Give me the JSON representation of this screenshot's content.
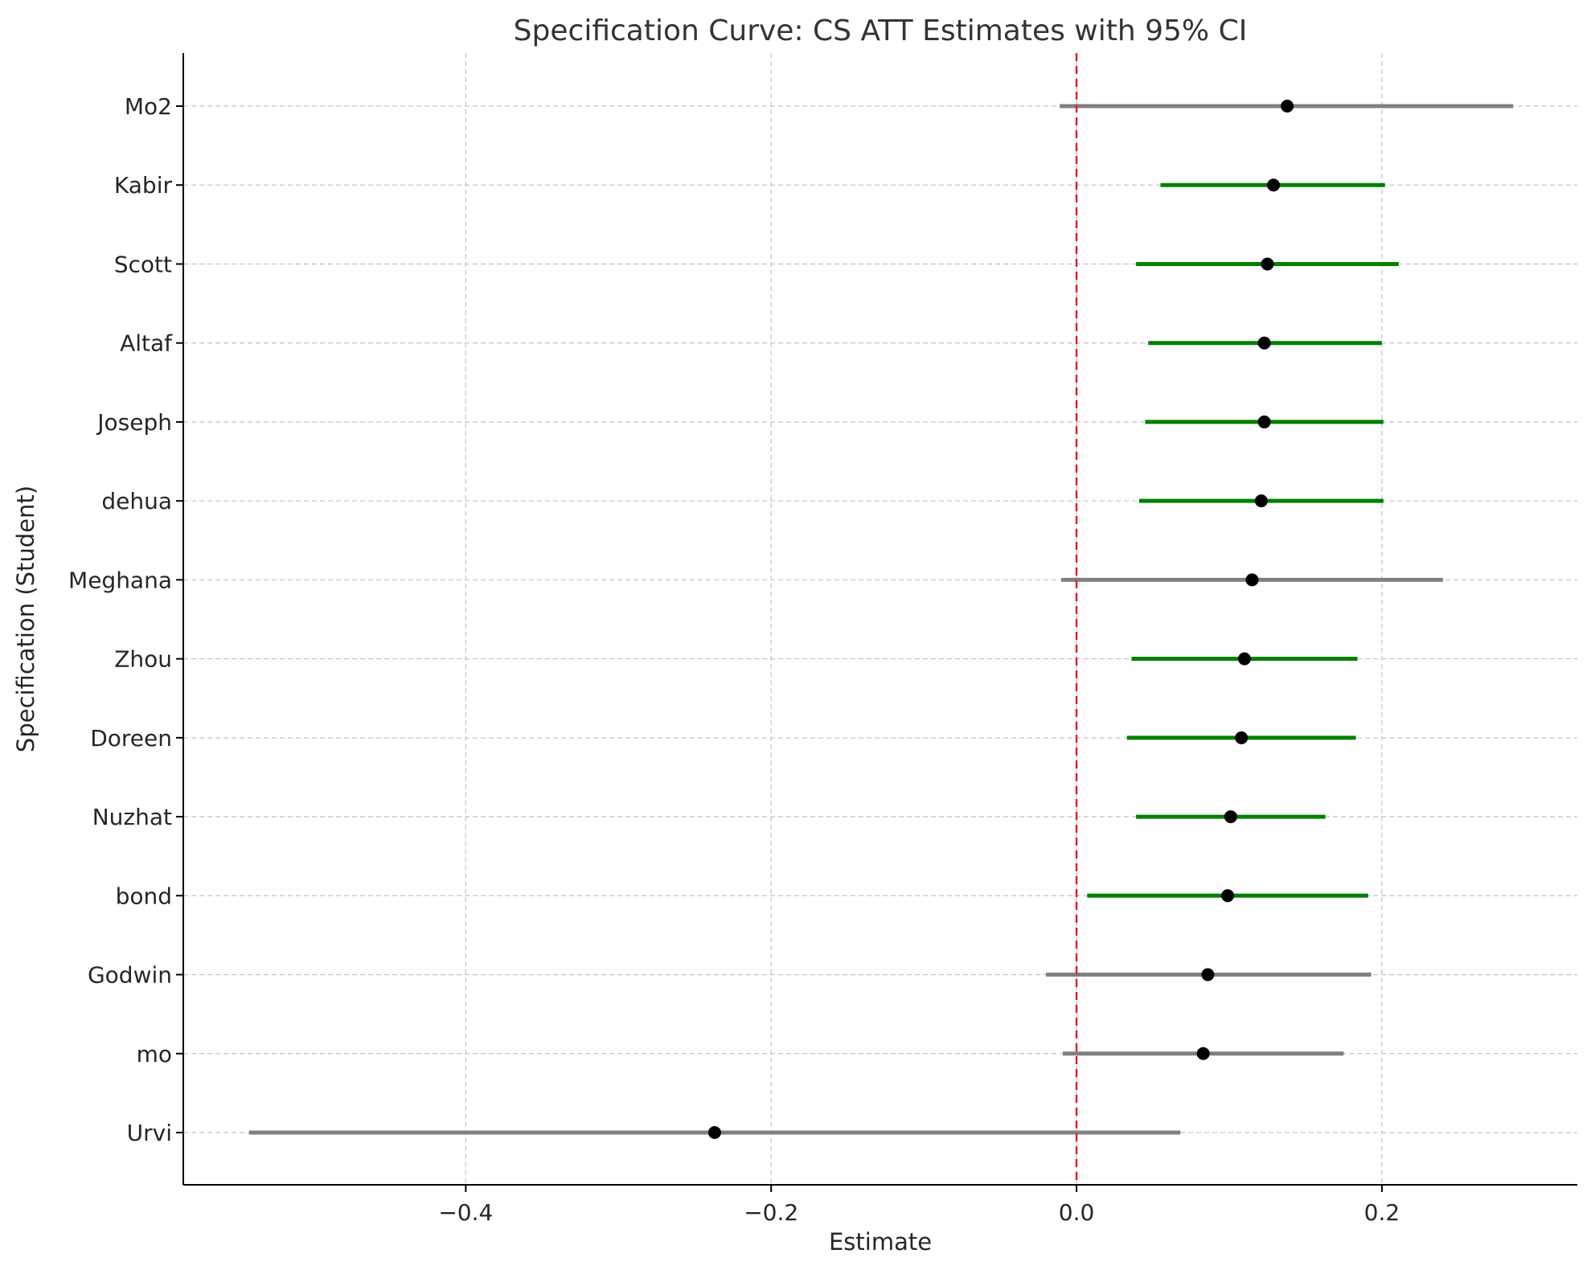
{
  "chart_data": {
    "type": "scatter",
    "title": "Specification Curve: CS ATT Estimates with 95% CI",
    "xlabel": "Estimate",
    "ylabel": "Specification (Student)",
    "xlim": [
      -0.585,
      0.328
    ],
    "x_ticks": [
      -0.4,
      -0.2,
      0.0,
      0.2
    ],
    "x_tick_labels": [
      "−0.4",
      "−0.2",
      "0.0",
      "0.2"
    ],
    "grid": true,
    "reference_line": {
      "x": 0.0,
      "color": "#e41a1c",
      "style": "dashed"
    },
    "colors": {
      "significant": "#008000",
      "not_significant": "#808080",
      "point": "#000000"
    },
    "points": [
      {
        "label": "Mo2",
        "estimate": 0.138,
        "ci_low": -0.011,
        "ci_high": 0.286,
        "significant": false
      },
      {
        "label": "Kabir",
        "estimate": 0.129,
        "ci_low": 0.055,
        "ci_high": 0.202,
        "significant": true
      },
      {
        "label": "Scott",
        "estimate": 0.125,
        "ci_low": 0.039,
        "ci_high": 0.211,
        "significant": true
      },
      {
        "label": "Altaf",
        "estimate": 0.123,
        "ci_low": 0.047,
        "ci_high": 0.2,
        "significant": true
      },
      {
        "label": "Joseph",
        "estimate": 0.123,
        "ci_low": 0.045,
        "ci_high": 0.201,
        "significant": true
      },
      {
        "label": "dehua",
        "estimate": 0.121,
        "ci_low": 0.041,
        "ci_high": 0.201,
        "significant": true
      },
      {
        "label": "Meghana",
        "estimate": 0.115,
        "ci_low": -0.01,
        "ci_high": 0.24,
        "significant": false
      },
      {
        "label": "Zhou",
        "estimate": 0.11,
        "ci_low": 0.036,
        "ci_high": 0.184,
        "significant": true
      },
      {
        "label": "Doreen",
        "estimate": 0.108,
        "ci_low": 0.033,
        "ci_high": 0.183,
        "significant": true
      },
      {
        "label": "Nuzhat",
        "estimate": 0.101,
        "ci_low": 0.039,
        "ci_high": 0.163,
        "significant": true
      },
      {
        "label": "bond",
        "estimate": 0.099,
        "ci_low": 0.007,
        "ci_high": 0.191,
        "significant": true
      },
      {
        "label": "Godwin",
        "estimate": 0.086,
        "ci_low": -0.02,
        "ci_high": 0.193,
        "significant": false
      },
      {
        "label": "mo",
        "estimate": 0.083,
        "ci_low": -0.009,
        "ci_high": 0.175,
        "significant": false
      },
      {
        "label": "Urvi",
        "estimate": -0.237,
        "ci_low": -0.542,
        "ci_high": 0.068,
        "significant": false
      }
    ]
  }
}
